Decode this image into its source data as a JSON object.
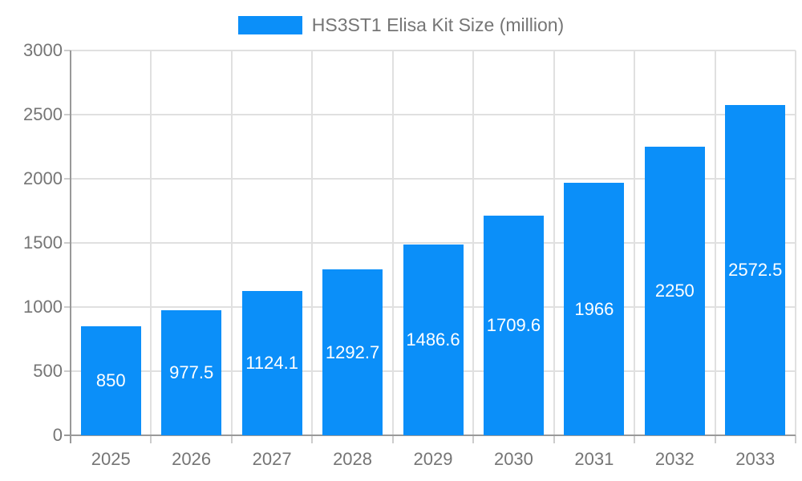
{
  "chart_data": {
    "type": "bar",
    "title": "HS3ST1 Elisa Kit Size (million)",
    "legend": {
      "label": "HS3ST1 Elisa Kit Size (million)",
      "position": "top-center"
    },
    "categories": [
      "2025",
      "2026",
      "2027",
      "2028",
      "2029",
      "2030",
      "2031",
      "2032",
      "2033"
    ],
    "values": [
      850,
      977.5,
      1124.1,
      1292.7,
      1486.6,
      1709.6,
      1966,
      2250,
      2572.5
    ],
    "value_labels": [
      "850",
      "977.5",
      "1124.1",
      "1292.7",
      "1486.6",
      "1709.6",
      "1966",
      "2250",
      "2572.5"
    ],
    "xlabel": "",
    "ylabel": "",
    "ylim": [
      0,
      3000
    ],
    "y_ticks": [
      0,
      500,
      1000,
      1500,
      2000,
      2500,
      3000
    ],
    "grid": true,
    "colors": {
      "bar": "#0b8ff9",
      "grid_line": "#e0e0e0",
      "axis_line": "#999999",
      "tick_mark": "#cccccc",
      "tick_label": "#757575",
      "value_label": "#ffffff",
      "background": "#ffffff"
    }
  }
}
